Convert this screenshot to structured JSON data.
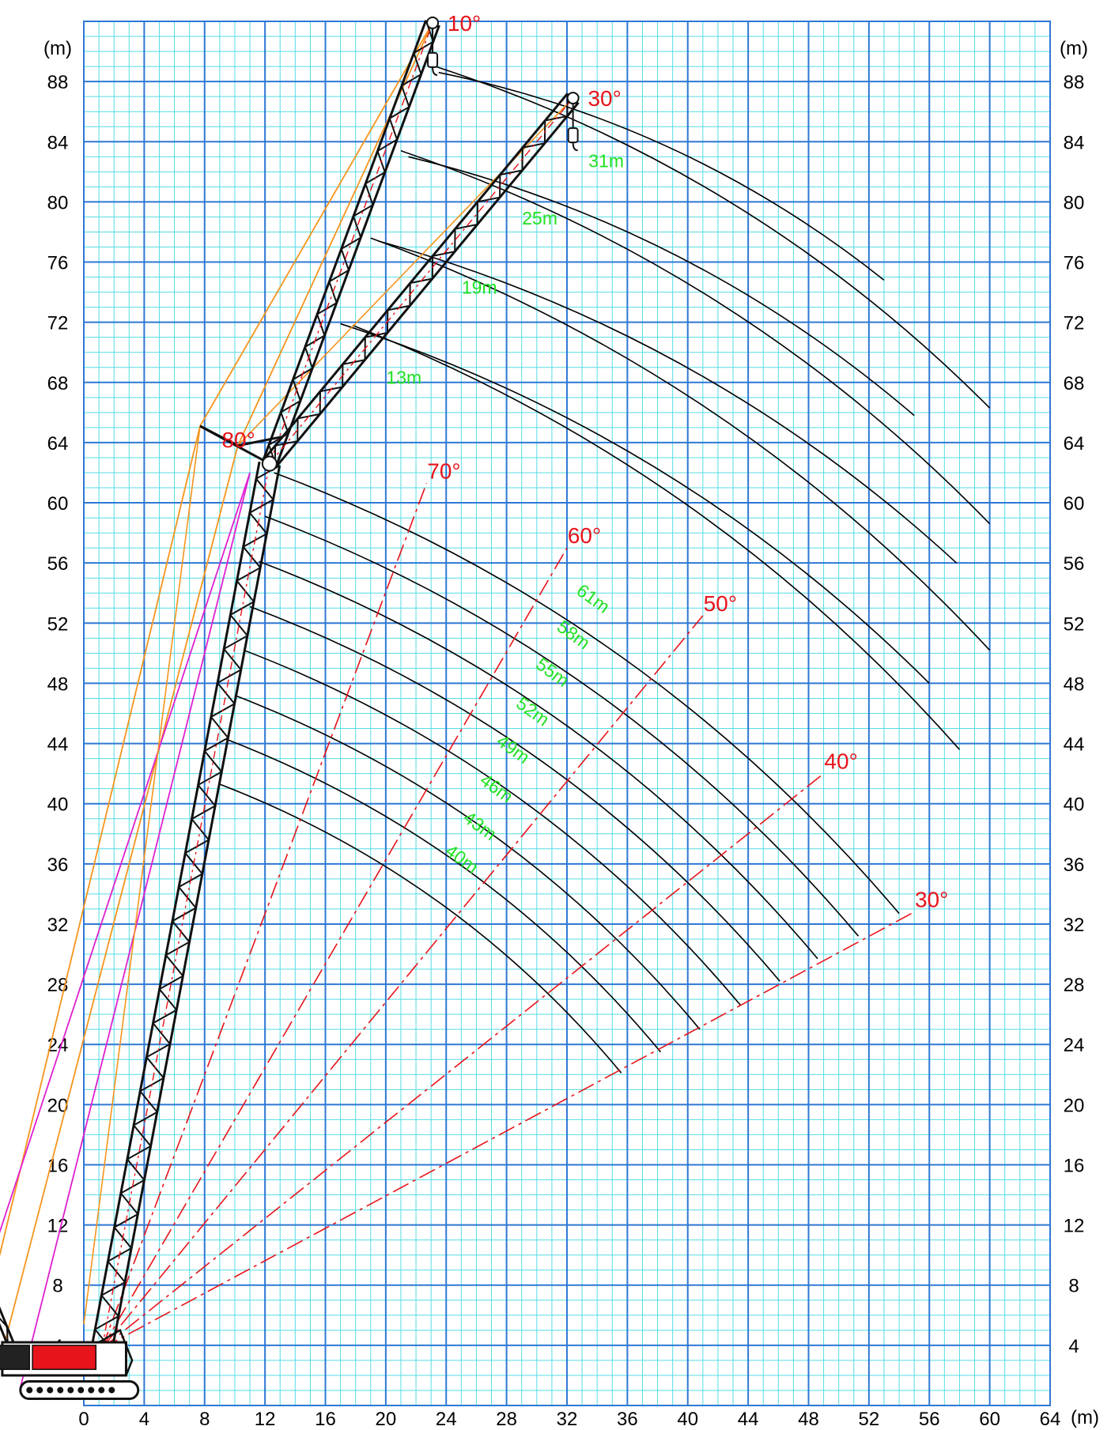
{
  "chart_data": {
    "type": "diagram",
    "title": "",
    "x_axis": {
      "unit": "(m)",
      "min": 0,
      "max": 64,
      "ticks": [
        0,
        4,
        8,
        12,
        16,
        20,
        24,
        28,
        32,
        36,
        40,
        44,
        48,
        52,
        56,
        60,
        64
      ]
    },
    "y_axis": {
      "unit": "(m)",
      "min": 0,
      "max": 92,
      "ticks": [
        4,
        8,
        12,
        16,
        20,
        24,
        28,
        32,
        36,
        40,
        44,
        48,
        52,
        56,
        60,
        64,
        68,
        72,
        76,
        80,
        84,
        88
      ]
    },
    "grid": true,
    "main_boom": {
      "pivot": [
        1.2,
        3.8
      ],
      "tip": [
        12.3,
        62.6
      ],
      "boom_angle_deg": 80
    },
    "jib_positions": [
      {
        "angle_label": "10°",
        "tip": [
          23.1,
          91.9
        ]
      },
      {
        "angle_label": "30°",
        "tip": [
          32.4,
          86.9
        ]
      }
    ],
    "boom_angle_lines": [
      {
        "label": "70°",
        "end": [
          22.7,
          61.3
        ]
      },
      {
        "label": "60°",
        "end": [
          32.0,
          57.0
        ]
      },
      {
        "label": "50°",
        "end": [
          41.0,
          52.5
        ]
      },
      {
        "label": "40°",
        "end": [
          49.0,
          42.0
        ]
      },
      {
        "label": "30°",
        "end": [
          55.0,
          32.8
        ]
      }
    ],
    "main_boom_lengths": [
      {
        "label": "40m",
        "start": [
          9.0,
          41.3
        ],
        "end": [
          35.6,
          22.1
        ]
      },
      {
        "label": "43m",
        "start": [
          9.4,
          44.3
        ],
        "end": [
          38.2,
          23.5
        ]
      },
      {
        "label": "46m",
        "start": [
          10.0,
          47.2
        ],
        "end": [
          40.8,
          25.0
        ]
      },
      {
        "label": "49m",
        "start": [
          10.6,
          50.2
        ],
        "end": [
          43.5,
          26.6
        ]
      },
      {
        "label": "52m",
        "start": [
          11.0,
          53.1
        ],
        "end": [
          46.1,
          28.2
        ]
      },
      {
        "label": "55m",
        "start": [
          11.6,
          56.1
        ],
        "end": [
          48.6,
          29.7
        ]
      },
      {
        "label": "58m",
        "start": [
          12.0,
          59.1
        ],
        "end": [
          51.3,
          31.2
        ]
      },
      {
        "label": "61m",
        "start": [
          12.6,
          62.0
        ],
        "end": [
          54.0,
          32.7
        ]
      }
    ],
    "jib_lengths": [
      {
        "label": "13m",
        "start": [
          17.0,
          71.9
        ],
        "end": [
          56.0,
          48.0
        ]
      },
      {
        "label": "19m",
        "start": [
          19.0,
          77.6
        ],
        "end": [
          60.0,
          50.2
        ]
      },
      {
        "label": "25m",
        "start": [
          21.0,
          83.4
        ],
        "end": [
          60.0,
          58.6
        ]
      },
      {
        "label": "31m",
        "start": [
          23.3,
          89.0
        ],
        "end": [
          60.0,
          66.3
        ]
      }
    ],
    "extra_curves": [
      {
        "start": [
          17.8,
          71.8
        ],
        "end": [
          58.0,
          43.6
        ]
      },
      {
        "start": [
          19.5,
          77.4
        ],
        "end": [
          57.8,
          56.0
        ]
      },
      {
        "start": [
          21.5,
          83.0
        ],
        "end": [
          55.0,
          65.8
        ]
      },
      {
        "start": [
          23.5,
          88.6
        ],
        "end": [
          53.0,
          74.8
        ]
      }
    ]
  }
}
